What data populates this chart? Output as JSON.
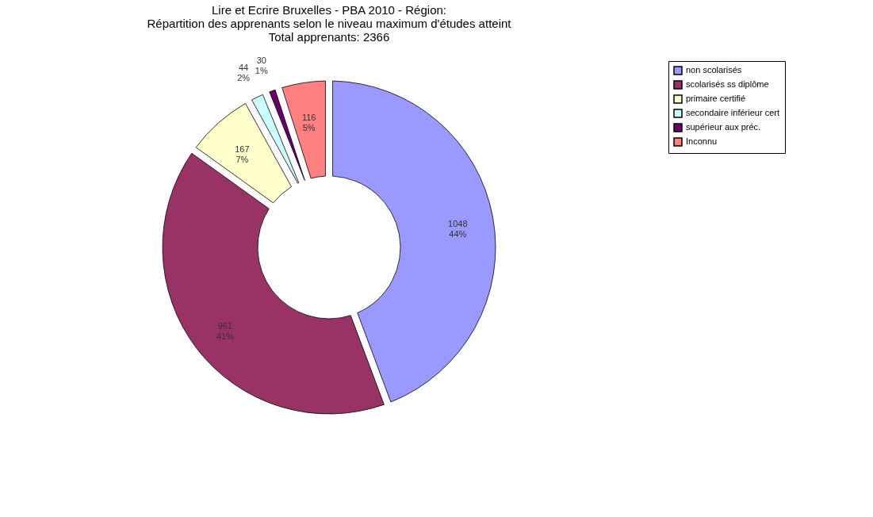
{
  "chart_data": {
    "type": "donut",
    "title": [
      "Lire et Ecrire Bruxelles -  PBA 2010 - Région:",
      "Répartition des apprenants  selon le niveau maximum d'études atteint",
      "Total apprenants: 2366"
    ],
    "categories": [
      "non scolarisés",
      "scolarisés ss diplôme",
      "primaire certifié",
      "secondaire inférieur cert",
      "supérieur aux préc.",
      "Inconnu"
    ],
    "values": [
      1048,
      961,
      167,
      44,
      30,
      116
    ],
    "colors": [
      "#9999ff",
      "#993366",
      "#ffffcc",
      "#ccffff",
      "#660066",
      "#ff8080"
    ],
    "value_labels": [
      "1048\n44%",
      "961\n41%",
      "167\n7%",
      "44\n2%",
      "30\n1%",
      "116\n5%"
    ],
    "legend": "right"
  }
}
